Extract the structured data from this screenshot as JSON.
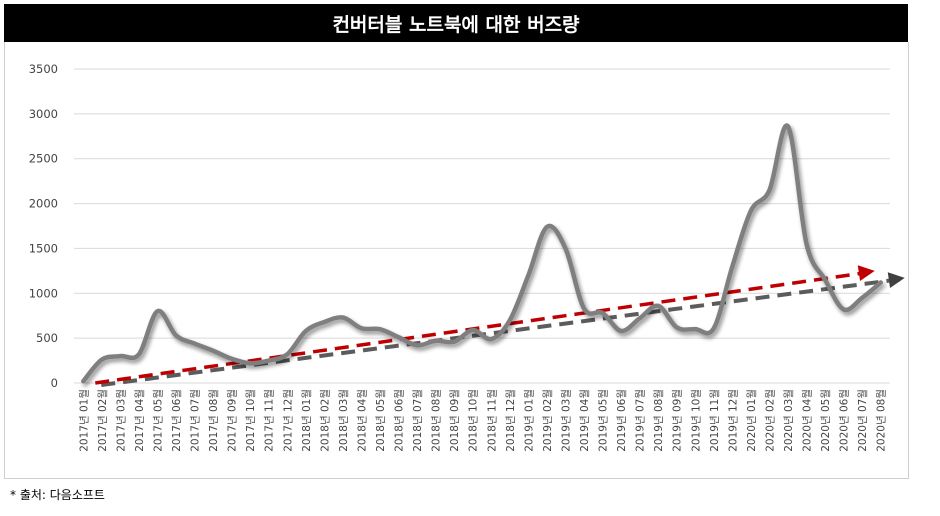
{
  "source": "* 출처: 다음소프트",
  "chart_data": {
    "type": "line",
    "title": "컨버터블 노트북에 대한 버즈량",
    "xlabel": "",
    "ylabel": "",
    "ylim": [
      0,
      3500
    ],
    "yticks": [
      "0",
      "500",
      "1000",
      "1500",
      "2000",
      "2500",
      "3000",
      "3500"
    ],
    "grid": true,
    "categories": [
      "2017년 01월",
      "2017년 02월",
      "2017년 03월",
      "2017년 04월",
      "2017년 05월",
      "2017년 06월",
      "2017년 07월",
      "2017년 08월",
      "2017년 09월",
      "2017년 10월",
      "2017년 11월",
      "2017년 12월",
      "2018년 01월",
      "2018년 02월",
      "2018년 03월",
      "2018년 04월",
      "2018년 05월",
      "2018년 06월",
      "2018년 07월",
      "2018년 08월",
      "2018년 09월",
      "2018년 10월",
      "2018년 11월",
      "2018년 12월",
      "2019년 01월",
      "2019년 02월",
      "2019년 03월",
      "2019년 04월",
      "2019년 05월",
      "2019년 06월",
      "2019년 07월",
      "2019년 08월",
      "2019년 09월",
      "2019년 10월",
      "2019년 11월",
      "2019년 12월",
      "2020년 01월",
      "2020년 02월",
      "2020년 03월",
      "2020년 04월",
      "2020년 05월",
      "2020년 06월",
      "2020년 07월",
      "2020년 08월"
    ],
    "series": [
      {
        "values": [
          20,
          260,
          300,
          320,
          800,
          530,
          440,
          360,
          270,
          220,
          250,
          320,
          580,
          680,
          730,
          610,
          600,
          510,
          420,
          470,
          460,
          590,
          490,
          700,
          1200,
          1740,
          1500,
          830,
          780,
          580,
          720,
          860,
          620,
          600,
          610,
          1300,
          1920,
          2150,
          2860,
          1550,
          1150,
          820,
          950,
          1120
        ],
        "color": "#7f7f7f"
      }
    ],
    "trend": {
      "type": "linear",
      "from": [
        0,
        0
      ],
      "to": [
        43,
        1250
      ],
      "color": "#c00000"
    }
  }
}
